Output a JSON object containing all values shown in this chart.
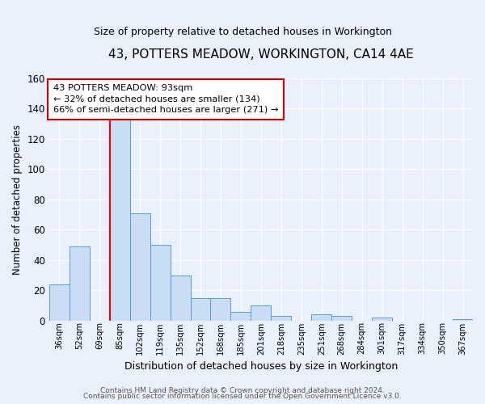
{
  "title": "43, POTTERS MEADOW, WORKINGTON, CA14 4AE",
  "subtitle": "Size of property relative to detached houses in Workington",
  "xlabel": "Distribution of detached houses by size in Workington",
  "ylabel": "Number of detached properties",
  "bin_labels": [
    "36sqm",
    "52sqm",
    "69sqm",
    "85sqm",
    "102sqm",
    "119sqm",
    "135sqm",
    "152sqm",
    "168sqm",
    "185sqm",
    "201sqm",
    "218sqm",
    "235sqm",
    "251sqm",
    "268sqm",
    "284sqm",
    "301sqm",
    "317sqm",
    "334sqm",
    "350sqm",
    "367sqm"
  ],
  "bar_heights": [
    24,
    49,
    0,
    133,
    71,
    50,
    30,
    15,
    15,
    6,
    10,
    3,
    0,
    4,
    3,
    0,
    2,
    0,
    0,
    0,
    1
  ],
  "bar_color": "#c9ddf5",
  "bar_edge_color": "#5b9bd5",
  "ylim": [
    0,
    160
  ],
  "yticks": [
    0,
    20,
    40,
    60,
    80,
    100,
    120,
    140,
    160
  ],
  "annotation_title": "43 POTTERS MEADOW: 93sqm",
  "annotation_line1": "← 32% of detached houses are smaller (134)",
  "annotation_line2": "66% of semi-detached houses are larger (271) →",
  "footer1": "Contains HM Land Registry data © Crown copyright and database right 2024.",
  "footer2": "Contains public sector information licensed under the Open Government Licence v3.0.",
  "background_color": "#eaf0fb",
  "grid_color": "#ffffff",
  "red_line_index": 3
}
